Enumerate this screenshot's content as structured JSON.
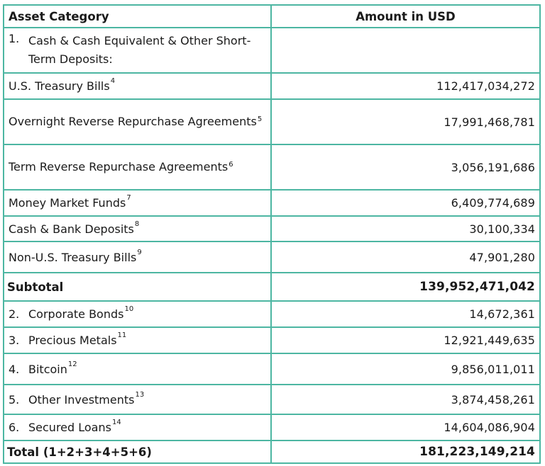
{
  "table": {
    "header": {
      "category": "Asset Category",
      "amount": "Amount in USD"
    },
    "group1": {
      "number": "1.",
      "label": "Cash & Cash Equivalent & Other Short-Term Deposits:",
      "amount": ""
    },
    "items": [
      {
        "label": "U.S. Treasury Bills",
        "note": "4",
        "amount": "112,417,034,272"
      },
      {
        "label": "Overnight Reverse Repurchase Agreements",
        "note": "5",
        "amount": "17,991,468,781"
      },
      {
        "label": "Term Reverse Repurchase Agreements",
        "note": "6",
        "amount": "3,056,191,686"
      },
      {
        "label": "Money Market Funds",
        "note": "7",
        "amount": "6,409,774,689"
      },
      {
        "label": "Cash & Bank Deposits",
        "note": "8",
        "amount": "30,100,334"
      },
      {
        "label": "Non-U.S. Treasury Bills",
        "note": "9",
        "amount": "47,901,280"
      }
    ],
    "subtotal": {
      "label": "Subtotal",
      "amount": "139,952,471,042"
    },
    "others": [
      {
        "number": "2.",
        "label": "Corporate Bonds",
        "note": "10",
        "amount": "14,672,361"
      },
      {
        "number": "3.",
        "label": "Precious Metals",
        "note": "11",
        "amount": "12,921,449,635"
      },
      {
        "number": "4.",
        "label": "Bitcoin",
        "note": "12",
        "amount": "9,856,011,011"
      },
      {
        "number": "5.",
        "label": "Other Investments",
        "note": "13",
        "amount": "3,874,458,261"
      },
      {
        "number": "6.",
        "label": "Secured Loans",
        "note": "14",
        "amount": "14,604,086,904"
      }
    ],
    "total": {
      "label": "Total (1+2+3+4+5+6)",
      "amount": "181,223,149,214"
    }
  }
}
